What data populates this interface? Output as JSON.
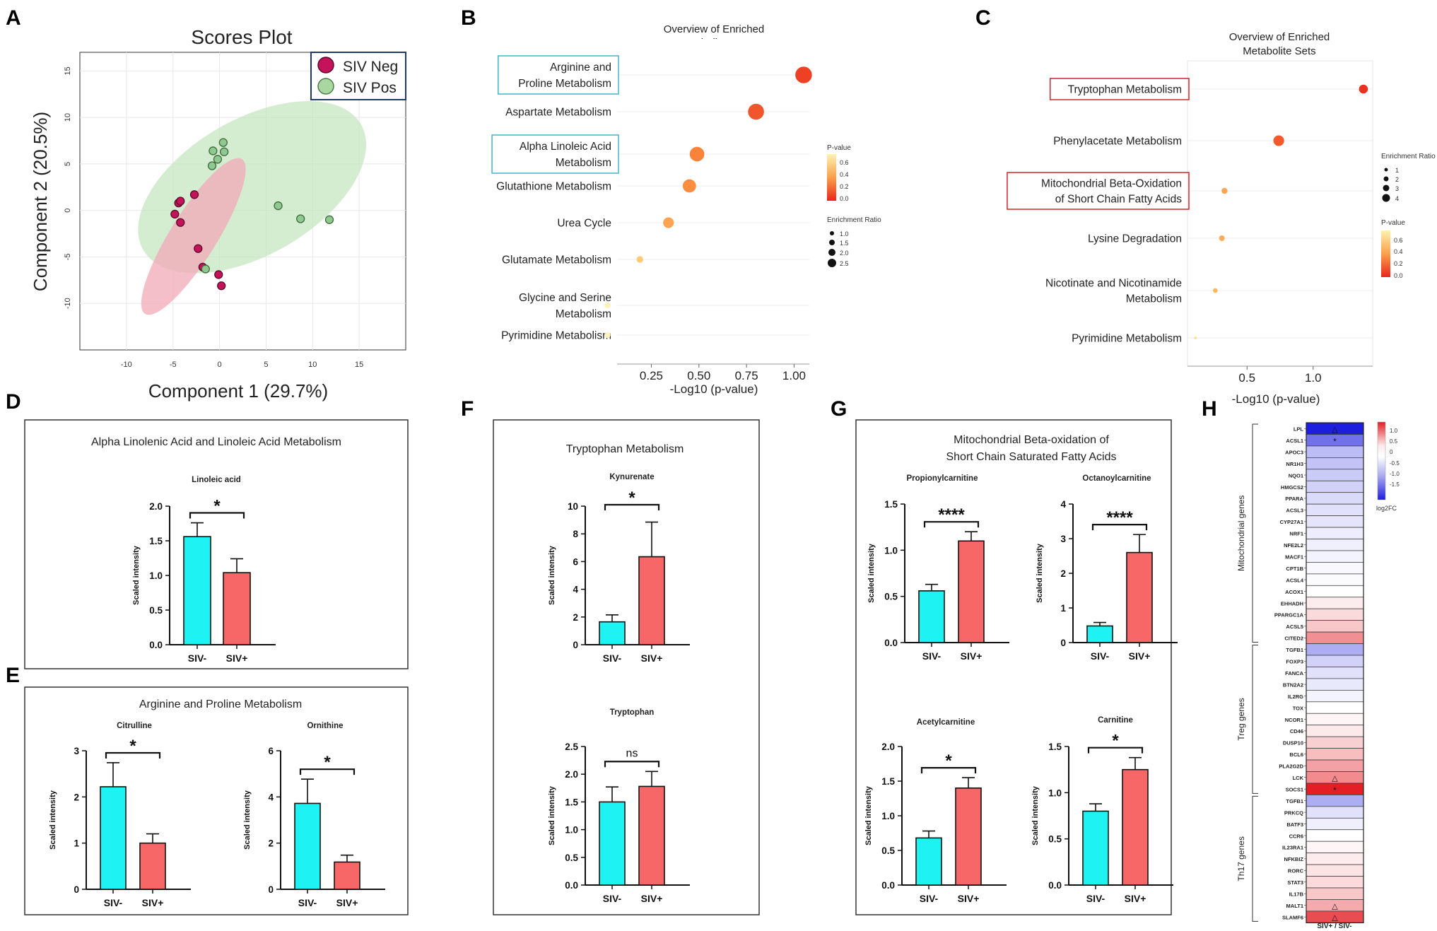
{
  "panels": {
    "A": {
      "letter": "A",
      "chart_data": {
        "type": "scatter",
        "title": "Scores Plot",
        "xlabel": "Component 1 (29.7%)",
        "ylabel": "Component 2 (20.5%)",
        "xlim": [
          -15,
          20
        ],
        "ylim": [
          -15,
          17
        ],
        "xticks": [
          -10,
          -5,
          0,
          5,
          10,
          15
        ],
        "yticks": [
          -10,
          -5,
          0,
          5,
          10,
          15
        ],
        "legend": [
          {
            "name": "SIV Neg",
            "color": "#c4135a"
          },
          {
            "name": "SIV Pos",
            "color": "#8fc98f"
          }
        ],
        "series": [
          {
            "name": "SIV Neg",
            "color": "#c4135a",
            "points": [
              [
                -4.4,
                0.8
              ],
              [
                -4.2,
                1.0
              ],
              [
                -2.7,
                1.7
              ],
              [
                -4.8,
                -0.4
              ],
              [
                -4.2,
                -1.3
              ],
              [
                -2.3,
                -4.1
              ],
              [
                -1.8,
                -6.1
              ],
              [
                -0.1,
                -6.9
              ],
              [
                0.2,
                -8.1
              ]
            ]
          },
          {
            "name": "SIV Pos",
            "color": "#8fc98f",
            "points": [
              [
                -0.7,
                6.4
              ],
              [
                0.4,
                7.3
              ],
              [
                0.5,
                6.3
              ],
              [
                -0.2,
                5.5
              ],
              [
                -0.8,
                4.8
              ],
              [
                6.3,
                0.5
              ],
              [
                8.7,
                -0.9
              ],
              [
                11.8,
                -1.0
              ],
              [
                -1.5,
                -6.3
              ]
            ]
          }
        ],
        "ellipses": [
          {
            "name": "SIV Pos",
            "color": "#c5e6c0",
            "cx": 3.5,
            "cy": 2.5,
            "rx": 13.5,
            "ry": 7.3,
            "angle": -30
          },
          {
            "name": "SIV Neg",
            "color": "#f2a9b8",
            "cx": -2.8,
            "cy": -2.8,
            "rx": 9.8,
            "ry": 2.5,
            "angle": -58
          }
        ]
      }
    },
    "B": {
      "letter": "B",
      "chart_data": {
        "type": "scatter",
        "title": [
          "Overview of Enriched",
          "Metabolite Sets"
        ],
        "xlabel": "-Log10 (p-value)",
        "xlim": [
          0.07,
          1.08
        ],
        "xticks": [
          0.25,
          0.5,
          0.75,
          1.0
        ],
        "xtick_labels": [
          "0.25",
          "0.50",
          "0.75",
          "1.00"
        ],
        "categories": [
          {
            "label": [
              "Arginine and",
              "Proline Metabolism"
            ],
            "highlight": true,
            "x": 1.05,
            "p": 0.09,
            "ratio": 2.5
          },
          {
            "label": [
              "Aspartate Metabolism"
            ],
            "highlight": false,
            "x": 0.8,
            "p": 0.16,
            "ratio": 2.4
          },
          {
            "label": [
              "Alpha Linoleic Acid",
              "Metabolism"
            ],
            "highlight": true,
            "x": 0.49,
            "p": 0.32,
            "ratio": 2.2
          },
          {
            "label": [
              "Glutathione Metabolism"
            ],
            "highlight": false,
            "x": 0.45,
            "p": 0.36,
            "ratio": 2.0
          },
          {
            "label": [
              "Urea Cycle"
            ],
            "highlight": false,
            "x": 0.34,
            "p": 0.46,
            "ratio": 1.6
          },
          {
            "label": [
              "Glutamate Metabolism"
            ],
            "highlight": false,
            "x": 0.19,
            "p": 0.65,
            "ratio": 1.0
          },
          {
            "label": [
              "Glycine and Serine",
              "Metabolism"
            ],
            "highlight": false,
            "x": 0.02,
            "p": 0.95,
            "ratio": 0.9
          },
          {
            "label": [
              "Pyrimidine Metabolism"
            ],
            "highlight": false,
            "x": 0.02,
            "p": 0.96,
            "ratio": 0.9
          }
        ],
        "legend_pvalue": {
          "title": "P-value",
          "ticks": [
            "0.6",
            "0.4",
            "0.2",
            "0.0"
          ]
        },
        "legend_ratio": {
          "title": "Enrichment Ratio",
          "ticks": [
            "1.0",
            "1.5",
            "2.0",
            "2.5"
          ]
        }
      }
    },
    "C": {
      "letter": "C",
      "chart_data": {
        "type": "scatter",
        "title": [
          "Overview of Enriched",
          "Metabolite Sets"
        ],
        "xlabel": "-Log10 (p-value)",
        "xlim": [
          0.05,
          1.45
        ],
        "xticks": [
          0.5,
          1.0
        ],
        "xtick_labels": [
          "0.5",
          "1.0"
        ],
        "categories": [
          {
            "label": [
              "Tryptophan Metabolism"
            ],
            "highlight": true,
            "x": 1.38,
            "p": 0.04,
            "ratio": 3.0
          },
          {
            "label": [
              "Phenylacetate Metabolism"
            ],
            "highlight": false,
            "x": 0.74,
            "p": 0.18,
            "ratio": 3.6
          },
          {
            "label": [
              "Mitochondrial Beta-Oxidation",
              "of Short Chain Fatty Acids"
            ],
            "highlight": true,
            "x": 0.33,
            "p": 0.47,
            "ratio": 2.0
          },
          {
            "label": [
              "Lysine Degradation"
            ],
            "highlight": false,
            "x": 0.31,
            "p": 0.5,
            "ratio": 1.9
          },
          {
            "label": [
              "Nicotinate and Nicotinamide",
              "Metabolism"
            ],
            "highlight": false,
            "x": 0.26,
            "p": 0.55,
            "ratio": 1.6
          },
          {
            "label": [
              "Pyrimidine Metabolism"
            ],
            "highlight": false,
            "x": 0.11,
            "p": 0.78,
            "ratio": 0.9
          }
        ],
        "legend_ratio": {
          "title": "Enrichment Ratio",
          "ticks": [
            "1",
            "2",
            "3",
            "4"
          ]
        },
        "legend_pvalue": {
          "title": "P-value",
          "ticks": [
            "0.6",
            "0.4",
            "0.2",
            "0.0"
          ]
        }
      }
    },
    "D": {
      "letter": "D",
      "box_title": [
        "Alpha Linolenic Acid and Linoleic Acid Metabolism"
      ],
      "charts": [
        {
          "type": "bar",
          "title": "Linoleic acid",
          "ylabel": "Scaled intensity",
          "categories": [
            "SIV-",
            "SIV+"
          ],
          "values": [
            1.56,
            1.04
          ],
          "errors": [
            0.2,
            0.2
          ],
          "ylim": [
            0,
            2.0
          ],
          "yticks": [
            "0.0",
            "0.5",
            "1.0",
            "1.5",
            "2.0"
          ],
          "significance": "*"
        }
      ]
    },
    "E": {
      "letter": "E",
      "box_title": [
        "Arginine and Proline Metabolism"
      ],
      "charts": [
        {
          "type": "bar",
          "title": "Citrulline",
          "ylabel": "Scaled intensity",
          "categories": [
            "SIV-",
            "SIV+"
          ],
          "values": [
            2.22,
            1.0
          ],
          "errors": [
            0.52,
            0.2
          ],
          "ylim": [
            0,
            3
          ],
          "yticks": [
            "0",
            "1",
            "2",
            "3"
          ],
          "significance": "*"
        },
        {
          "type": "bar",
          "title": "Ornithine",
          "ylabel": "Scaled intensity",
          "categories": [
            "SIV-",
            "SIV+"
          ],
          "values": [
            3.72,
            1.18
          ],
          "errors": [
            1.05,
            0.3
          ],
          "ylim": [
            0,
            6
          ],
          "yticks": [
            "0",
            "2",
            "4",
            "6"
          ],
          "significance": "*"
        }
      ]
    },
    "F": {
      "letter": "F",
      "box_title": [
        "Tryptophan Metabolism"
      ],
      "charts": [
        {
          "type": "bar",
          "title": "Kynurenate",
          "ylabel": "Scaled intensity",
          "categories": [
            "SIV-",
            "SIV+"
          ],
          "values": [
            1.65,
            6.35
          ],
          "errors": [
            0.5,
            2.5
          ],
          "ylim": [
            0,
            10
          ],
          "yticks": [
            "0",
            "2",
            "4",
            "6",
            "8",
            "10"
          ],
          "significance": "*"
        },
        {
          "type": "bar",
          "title": "Tryptophan",
          "ylabel": "Scaled intensity",
          "categories": [
            "SIV-",
            "SIV+"
          ],
          "values": [
            1.5,
            1.78
          ],
          "errors": [
            0.27,
            0.27
          ],
          "ylim": [
            0,
            2.5
          ],
          "yticks": [
            "0.0",
            "0.5",
            "1.0",
            "1.5",
            "2.0",
            "2.5"
          ],
          "significance": "ns"
        }
      ]
    },
    "G": {
      "letter": "G",
      "box_title": [
        "Mitochondrial Beta-oxidation of",
        "Short Chain Saturated Fatty Acids"
      ],
      "charts": [
        {
          "type": "bar",
          "title": "Propionylcarnitine",
          "ylabel": "Scaled intensity",
          "categories": [
            "SIV-",
            "SIV+"
          ],
          "values": [
            0.56,
            1.1
          ],
          "errors": [
            0.07,
            0.1
          ],
          "ylim": [
            0,
            1.5
          ],
          "yticks": [
            "0.0",
            "0.5",
            "1.0",
            "1.5"
          ],
          "significance": "****"
        },
        {
          "type": "bar",
          "title": "Octanoylcarnitine",
          "ylabel": "Scaled intensity",
          "categories": [
            "SIV-",
            "SIV+"
          ],
          "values": [
            0.48,
            2.6
          ],
          "errors": [
            0.1,
            0.52
          ],
          "ylim": [
            0,
            4
          ],
          "yticks": [
            "0",
            "1",
            "2",
            "3",
            "4"
          ],
          "significance": "****"
        },
        {
          "type": "bar",
          "title": "Acetylcarnitine",
          "ylabel": "Scaled intensity",
          "categories": [
            "SIV-",
            "SIV+"
          ],
          "values": [
            0.68,
            1.4
          ],
          "errors": [
            0.1,
            0.15
          ],
          "ylim": [
            0,
            2.0
          ],
          "yticks": [
            "0.0",
            "0.5",
            "1.0",
            "1.5",
            "2.0"
          ],
          "significance": "*"
        },
        {
          "type": "bar",
          "title": "Carnitine",
          "ylabel": "Scaled intensity",
          "categories": [
            "SIV-",
            "SIV+"
          ],
          "values": [
            0.8,
            1.25
          ],
          "errors": [
            0.08,
            0.13
          ],
          "ylim": [
            0,
            1.5
          ],
          "yticks": [
            "0.0",
            "0.5",
            "1.0",
            "1.5"
          ],
          "significance": "*"
        }
      ]
    },
    "H": {
      "letter": "H",
      "chart_data": {
        "type": "heatmap",
        "xlabel": "SIV+ / SIV-",
        "colorbar": {
          "title": "log2FC",
          "ticks": [
            "1.0",
            "0.5",
            "0",
            "-0.5",
            "-1.0",
            "-1.5"
          ],
          "min": -1.5,
          "max": 1.2
        },
        "groups": [
          {
            "name": "Mitochondrial genes",
            "genes": [
              {
                "g": "LPL",
                "v": -1.6,
                "m": "△"
              },
              {
                "g": "ACSL1",
                "v": -0.95,
                "m": "*"
              },
              {
                "g": "APOC3",
                "v": -0.45
              },
              {
                "g": "NR1H3",
                "v": -0.4
              },
              {
                "g": "NQO1",
                "v": -0.35
              },
              {
                "g": "HMGCS2",
                "v": -0.3
              },
              {
                "g": "PPARA",
                "v": -0.25
              },
              {
                "g": "ACSL3",
                "v": -0.2
              },
              {
                "g": "CYP27A1",
                "v": -0.18
              },
              {
                "g": "NRF1",
                "v": -0.12
              },
              {
                "g": "NFE2L2",
                "v": -0.1
              },
              {
                "g": "MACF1",
                "v": -0.08
              },
              {
                "g": "CPT1B",
                "v": -0.05
              },
              {
                "g": "ACSL4",
                "v": -0.03
              },
              {
                "g": "ACOX1",
                "v": 0.0
              },
              {
                "g": "EHHADH",
                "v": 0.1
              },
              {
                "g": "PPARGC1A",
                "v": 0.2
              },
              {
                "g": "ACSL5",
                "v": 0.3
              },
              {
                "g": "CITED2",
                "v": 0.6
              }
            ]
          },
          {
            "name": "Treg genes",
            "genes": [
              {
                "g": "TGFB1",
                "v": -0.55
              },
              {
                "g": "FOXP3",
                "v": -0.3
              },
              {
                "g": "FANCA",
                "v": -0.2
              },
              {
                "g": "BTN2A2",
                "v": -0.15
              },
              {
                "g": "IL2RG",
                "v": -0.08
              },
              {
                "g": "TOX",
                "v": 0.0
              },
              {
                "g": "NCOR1",
                "v": 0.05
              },
              {
                "g": "CD46",
                "v": 0.12
              },
              {
                "g": "DUSP10",
                "v": 0.25
              },
              {
                "g": "BCL6",
                "v": 0.35
              },
              {
                "g": "PLA2G2D",
                "v": 0.5
              },
              {
                "g": "LCK",
                "v": 0.62,
                "m": "△"
              },
              {
                "g": "SOCS1",
                "v": 1.2,
                "m": "*"
              }
            ]
          },
          {
            "name": "Th17 genes",
            "genes": [
              {
                "g": "TGFB1",
                "v": -0.55
              },
              {
                "g": "PRKCQ",
                "v": -0.2
              },
              {
                "g": "BATF3",
                "v": -0.1
              },
              {
                "g": "CCR6",
                "v": 0.0
              },
              {
                "g": "IL23RA1",
                "v": 0.05
              },
              {
                "g": "NFKBIZ",
                "v": 0.1
              },
              {
                "g": "RORC",
                "v": 0.15
              },
              {
                "g": "STAT3",
                "v": 0.2
              },
              {
                "g": "IL17B",
                "v": 0.3
              },
              {
                "g": "MALT1",
                "v": 0.45,
                "m": "△"
              },
              {
                "g": "SLAMF6",
                "v": 0.95,
                "m": "△"
              }
            ]
          }
        ]
      }
    }
  },
  "colors": {
    "neg_bar": "#1ef2f2",
    "pos_bar": "#f76767",
    "highlight_B": "#3fb6c9",
    "highlight_C": "#d0252b"
  }
}
